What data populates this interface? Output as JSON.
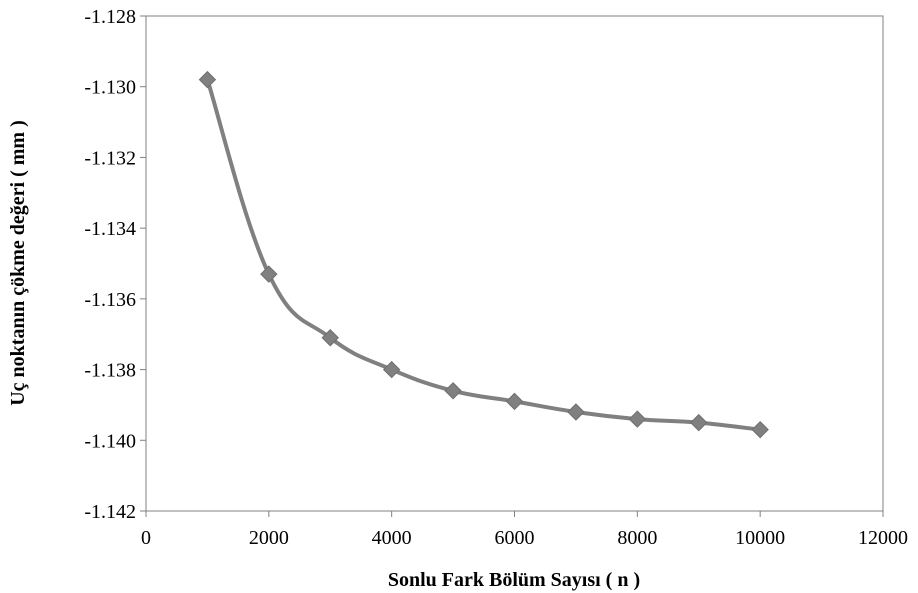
{
  "chart_data": {
    "type": "line",
    "title": "",
    "xlabel": "Sonlu Fark Bölüm Sayısı  ( n )",
    "ylabel": "Uç noktanın çökme değeri  ( mm )",
    "xlim": [
      0,
      12000
    ],
    "ylim": [
      -1.142,
      -1.128
    ],
    "xticks": [
      0,
      2000,
      4000,
      6000,
      8000,
      10000,
      12000
    ],
    "xtick_labels": [
      "0",
      "2000",
      "4000",
      "6000",
      "8000",
      "10000",
      "12000"
    ],
    "yticks": [
      -1.128,
      -1.13,
      -1.132,
      -1.134,
      -1.136,
      -1.138,
      -1.14,
      -1.142
    ],
    "ytick_labels": [
      "-1.128",
      "-1.130",
      "-1.132",
      "-1.134",
      "-1.136",
      "-1.138",
      "-1.140",
      "-1.142"
    ],
    "grid": false,
    "smooth": true,
    "marker": "diamond",
    "color": "#808080",
    "series": [
      {
        "x": [
          1000,
          2000,
          3000,
          4000,
          5000,
          6000,
          7000,
          8000,
          9000,
          10000
        ],
        "y": [
          -1.1298,
          -1.1353,
          -1.1371,
          -1.138,
          -1.1386,
          -1.1389,
          -1.1392,
          -1.1394,
          -1.1395,
          -1.1397
        ]
      }
    ]
  }
}
